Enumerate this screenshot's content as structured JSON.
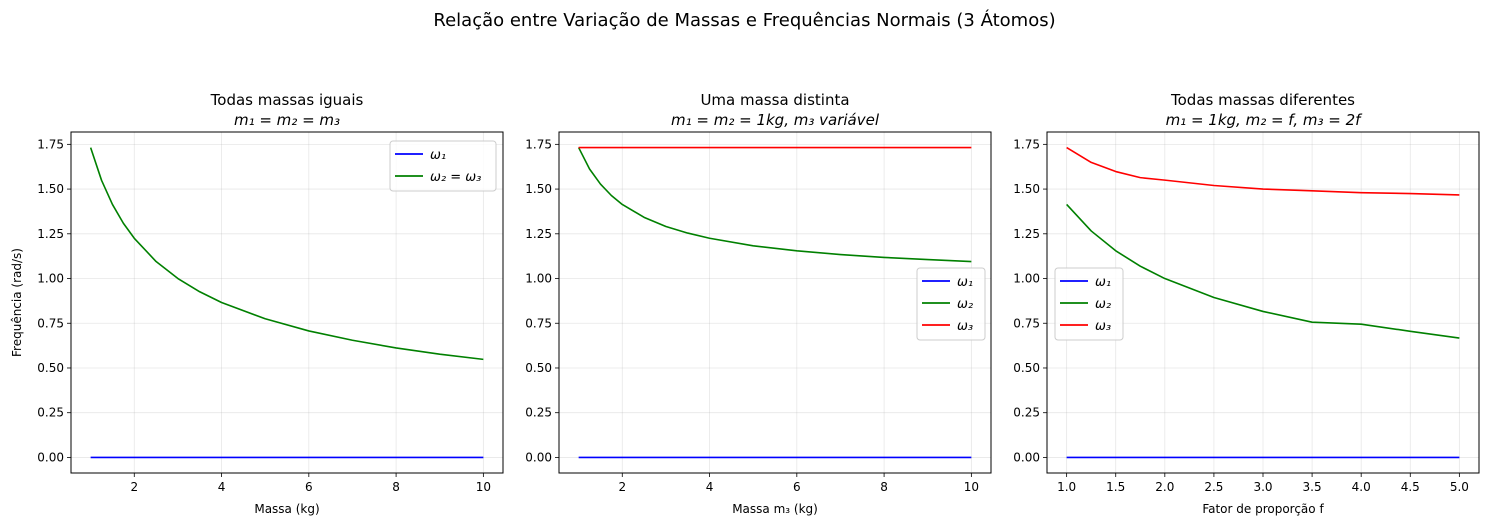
{
  "figure_title": "Relação entre Variação de Massas e Frequências Normais (3 Átomos)",
  "chart_data": [
    {
      "type": "line",
      "title": [
        "Todas massas iguais",
        "m₁ = m₂ = m₃"
      ],
      "xlabel": "Massa (kg)",
      "ylabel": "Frequência (rad/s)",
      "xlim": [
        0.55,
        10.45
      ],
      "ylim": [
        -0.087,
        1.819
      ],
      "xticks": [
        2,
        4,
        6,
        8,
        10
      ],
      "xtick_labels": [
        "2",
        "4",
        "6",
        "8",
        "10"
      ],
      "yticks": [
        0,
        0.25,
        0.5,
        0.75,
        1.0,
        1.25,
        1.5,
        1.75
      ],
      "ytick_labels": [
        "0.00",
        "0.25",
        "0.50",
        "0.75",
        "1.00",
        "1.25",
        "1.50",
        "1.75"
      ],
      "grid": true,
      "legend": "upper right",
      "series": [
        {
          "name": "ω₁",
          "color": "#0000ff",
          "x": [
            1,
            10
          ],
          "y": [
            0,
            0
          ]
        },
        {
          "name": "ω₂ = ω₃",
          "color": "#008000",
          "x": [
            1.0,
            1.25,
            1.5,
            1.75,
            2.0,
            2.5,
            3.0,
            3.5,
            4.0,
            5.0,
            6.0,
            7.0,
            8.0,
            9.0,
            10.0
          ],
          "y": [
            1.732,
            1.549,
            1.414,
            1.309,
            1.225,
            1.095,
            1.0,
            0.926,
            0.866,
            0.775,
            0.707,
            0.655,
            0.612,
            0.577,
            0.548
          ]
        }
      ]
    },
    {
      "type": "line",
      "title": [
        "Uma massa distinta",
        "m₁ = m₂ = 1kg, m₃ variável"
      ],
      "xlabel": "Massa m₃ (kg)",
      "ylabel": "",
      "xlim": [
        0.55,
        10.45
      ],
      "ylim": [
        -0.087,
        1.819
      ],
      "xticks": [
        2,
        4,
        6,
        8,
        10
      ],
      "xtick_labels": [
        "2",
        "4",
        "6",
        "8",
        "10"
      ],
      "yticks": [
        0,
        0.25,
        0.5,
        0.75,
        1.0,
        1.25,
        1.5,
        1.75
      ],
      "ytick_labels": [
        "0.00",
        "0.25",
        "0.50",
        "0.75",
        "1.00",
        "1.25",
        "1.50",
        "1.75"
      ],
      "grid": true,
      "legend": "center right",
      "series": [
        {
          "name": "ω₁",
          "color": "#0000ff",
          "x": [
            1,
            10
          ],
          "y": [
            0,
            0
          ]
        },
        {
          "name": "ω₂",
          "color": "#008000",
          "x": [
            1.0,
            1.25,
            1.5,
            1.75,
            2.0,
            2.5,
            3.0,
            3.5,
            4.0,
            5.0,
            6.0,
            7.0,
            8.0,
            9.0,
            10.0
          ],
          "y": [
            1.732,
            1.612,
            1.528,
            1.464,
            1.414,
            1.342,
            1.291,
            1.254,
            1.225,
            1.183,
            1.155,
            1.134,
            1.118,
            1.106,
            1.095
          ]
        },
        {
          "name": "ω₃",
          "color": "#ff0000",
          "x": [
            1,
            10
          ],
          "y": [
            1.732,
            1.732
          ]
        }
      ]
    },
    {
      "type": "line",
      "title": [
        "Todas massas diferentes",
        "m₁ = 1kg, m₂ = f, m₃ = 2f"
      ],
      "xlabel": "Fator de proporção f",
      "ylabel": "",
      "xlim": [
        0.8,
        5.2
      ],
      "ylim": [
        -0.087,
        1.819
      ],
      "xticks": [
        1.0,
        1.5,
        2.0,
        2.5,
        3.0,
        3.5,
        4.0,
        4.5,
        5.0
      ],
      "xtick_labels": [
        "1.0",
        "1.5",
        "2.0",
        "2.5",
        "3.0",
        "3.5",
        "4.0",
        "4.5",
        "5.0"
      ],
      "yticks": [
        0,
        0.25,
        0.5,
        0.75,
        1.0,
        1.25,
        1.5,
        1.75
      ],
      "ytick_labels": [
        "0.00",
        "0.25",
        "0.50",
        "0.75",
        "1.00",
        "1.25",
        "1.50",
        "1.75"
      ],
      "grid": true,
      "legend": "center left",
      "series": [
        {
          "name": "ω₁",
          "color": "#0000ff",
          "x": [
            1,
            5
          ],
          "y": [
            0,
            0
          ]
        },
        {
          "name": "ω₂",
          "color": "#008000",
          "x": [
            1.0,
            1.25,
            1.5,
            1.75,
            2.0,
            2.5,
            3.0,
            3.5,
            4.0,
            4.5,
            5.0
          ],
          "y": [
            1.414,
            1.266,
            1.155,
            1.069,
            1.0,
            0.894,
            0.816,
            0.756,
            0.745,
            0.705,
            0.667
          ]
        },
        {
          "name": "ω₃",
          "color": "#ff0000",
          "x": [
            1.0,
            1.25,
            1.5,
            1.75,
            2.0,
            2.5,
            3.0,
            3.5,
            4.0,
            4.5,
            5.0
          ],
          "y": [
            1.732,
            1.649,
            1.598,
            1.564,
            1.55,
            1.52,
            1.5,
            1.49,
            1.48,
            1.475,
            1.467
          ]
        }
      ]
    }
  ]
}
